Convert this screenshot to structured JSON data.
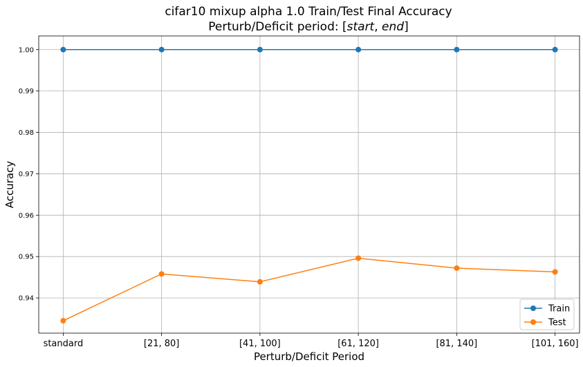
{
  "chart_data": {
    "type": "line",
    "title_line1": "cifar10 mixup alpha 1.0 Train/Test Final Accuracy",
    "title_line2_prefix": "Perturb/Deficit period: [",
    "title_line2_start": "start",
    "title_line2_sep": ", ",
    "title_line2_end": "end",
    "title_line2_suffix": "]",
    "xlabel": "Perturb/Deficit Period",
    "ylabel": "Accuracy",
    "categories": [
      "standard",
      "[21, 80]",
      "[41, 100]",
      "[61, 120]",
      "[81, 140]",
      "[101, 160]"
    ],
    "ylim": [
      0.9315,
      1.0033
    ],
    "yticks": [
      "0.94",
      "0.95",
      "0.96",
      "0.97",
      "0.98",
      "0.99",
      "1.00"
    ],
    "grid": true,
    "legend_position": "lower-right",
    "series": [
      {
        "name": "Train",
        "color": "#1f77b4",
        "values": [
          1.0,
          1.0,
          1.0,
          1.0,
          1.0,
          1.0
        ]
      },
      {
        "name": "Test",
        "color": "#ff7f0e",
        "values": [
          0.9345,
          0.9458,
          0.9439,
          0.9496,
          0.9472,
          0.9463
        ]
      }
    ]
  }
}
